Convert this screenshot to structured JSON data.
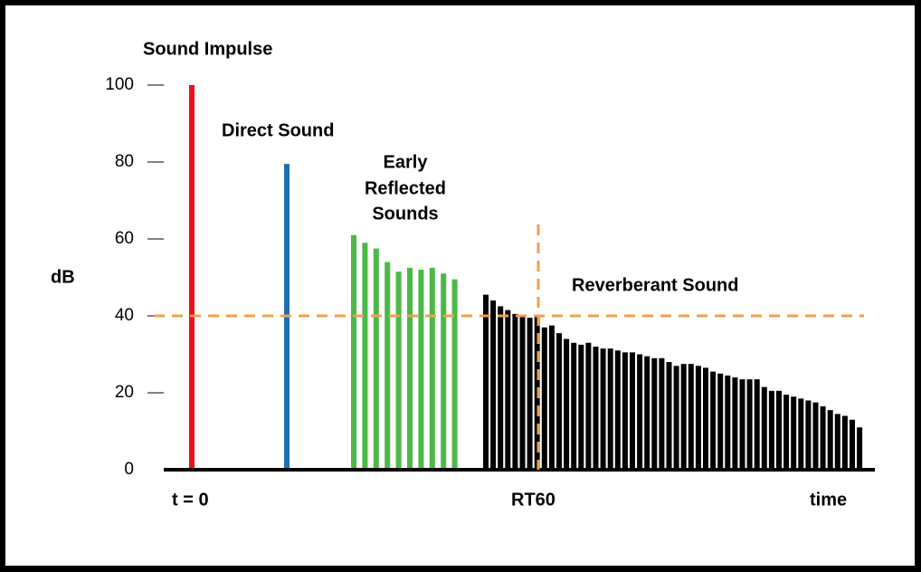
{
  "chart_data": {
    "type": "bar",
    "ylabel": "dB",
    "ylim": [
      0,
      100
    ],
    "yticks": [
      0,
      20,
      40,
      60,
      80,
      100
    ],
    "x_labels": [
      "t = 0",
      "RT60",
      "time"
    ],
    "reference_line": {
      "value": 40,
      "color": "#f0a04b"
    },
    "series": [
      {
        "name": "Sound Impulse",
        "color": "#e8141c",
        "values": [
          100
        ]
      },
      {
        "name": "Direct Sound",
        "color": "#1f6fb2",
        "values": [
          79.5
        ]
      },
      {
        "name_lines": [
          "Early",
          "Reflected",
          "Sounds"
        ],
        "color": "#4cb848",
        "values": [
          61,
          59,
          57.5,
          54,
          51.5,
          52.5,
          52,
          52.5,
          51,
          49.5
        ]
      },
      {
        "name": "Reverberant Sound",
        "color": "#000000",
        "values": [
          45.5,
          44,
          42.5,
          41.5,
          40.5,
          40,
          39.5,
          40,
          37,
          37.5,
          35.5,
          34,
          33,
          32.5,
          33,
          32,
          31.5,
          31.5,
          31,
          30.5,
          30.5,
          30,
          29.5,
          29,
          29,
          28,
          27,
          27.5,
          27.5,
          27,
          26.5,
          25.5,
          25,
          24.5,
          24,
          23.5,
          23.5,
          23.5,
          21.5,
          20.5,
          20.5,
          19.5,
          19,
          18.5,
          18,
          17.5,
          16.5,
          15.5,
          14.5,
          14,
          13,
          11
        ]
      }
    ]
  }
}
